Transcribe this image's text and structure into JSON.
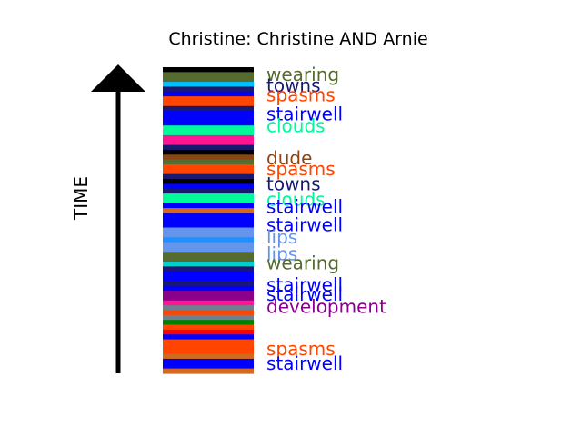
{
  "chart_data": {
    "type": "bar",
    "title": "Christine: Christine AND Arnie",
    "ylabel": "TIME",
    "colors": {
      "black": "#000000",
      "olive": "#556b2f",
      "deep_sky": "#00bfff",
      "navy": "#191970",
      "orangered": "#ff4500",
      "blue": "#0000ff",
      "spring_green": "#00fa9a",
      "pink": "#ff1493",
      "brown": "#8b4513",
      "cornflower": "#6495ed",
      "dodger": "#1e90ff",
      "cyan": "#00ced1",
      "purple": "#8b008b",
      "gray": "#708090",
      "red": "#ff0000",
      "green": "#008000",
      "chocolate": "#d2691e"
    },
    "segments": [
      "black",
      "olive",
      "olive",
      "deep_sky",
      "navy",
      "blue",
      "orangered",
      "orangered",
      "navy",
      "blue",
      "blue",
      "blue",
      "spring_green",
      "spring_green",
      "pink",
      "pink",
      "navy",
      "black",
      "brown",
      "olive",
      "orangered",
      "orangered",
      "navy",
      "black",
      "blue",
      "navy",
      "spring_green",
      "spring_green",
      "blue",
      "chocolate",
      "blue",
      "blue",
      "blue",
      "cornflower",
      "cornflower",
      "dodger",
      "cornflower",
      "cornflower",
      "olive",
      "olive",
      "cyan",
      "navy",
      "blue",
      "blue",
      "navy",
      "blue",
      "purple",
      "purple",
      "pink",
      "gray",
      "orangered",
      "gray",
      "green",
      "orangered",
      "red",
      "blue",
      "orangered",
      "orangered",
      "orangered",
      "chocolate",
      "blue",
      "blue",
      "chocolate"
    ],
    "labels": [
      {
        "text": "wearing",
        "color": "olive",
        "t": 0.977
      },
      {
        "text": "towns",
        "color": "navy",
        "t": 0.94
      },
      {
        "text": "spasms",
        "color": "orangered",
        "t": 0.91
      },
      {
        "text": "stairwell",
        "color": "blue",
        "t": 0.847
      },
      {
        "text": "clouds",
        "color": "spring_green",
        "t": 0.808
      },
      {
        "text": "dude",
        "color": "brown",
        "t": 0.704
      },
      {
        "text": "spasms",
        "color": "orangered",
        "t": 0.668
      },
      {
        "text": "towns",
        "color": "navy",
        "t": 0.618
      },
      {
        "text": "clouds",
        "color": "spring_green",
        "t": 0.568
      },
      {
        "text": "stairwell",
        "color": "blue",
        "t": 0.545
      },
      {
        "text": "stairwell",
        "color": "blue",
        "t": 0.485
      },
      {
        "text": "lips",
        "color": "cornflower",
        "t": 0.445
      },
      {
        "text": "lips",
        "color": "cornflower",
        "t": 0.39
      },
      {
        "text": "wearing",
        "color": "olive",
        "t": 0.36
      },
      {
        "text": "stairwell",
        "color": "blue",
        "t": 0.29
      },
      {
        "text": "stairwell",
        "color": "blue",
        "t": 0.258
      },
      {
        "text": "development",
        "color": "purple",
        "t": 0.218
      },
      {
        "text": "spasms",
        "color": "orangered",
        "t": 0.08
      },
      {
        "text": "stairwell",
        "color": "blue",
        "t": 0.032
      }
    ]
  }
}
